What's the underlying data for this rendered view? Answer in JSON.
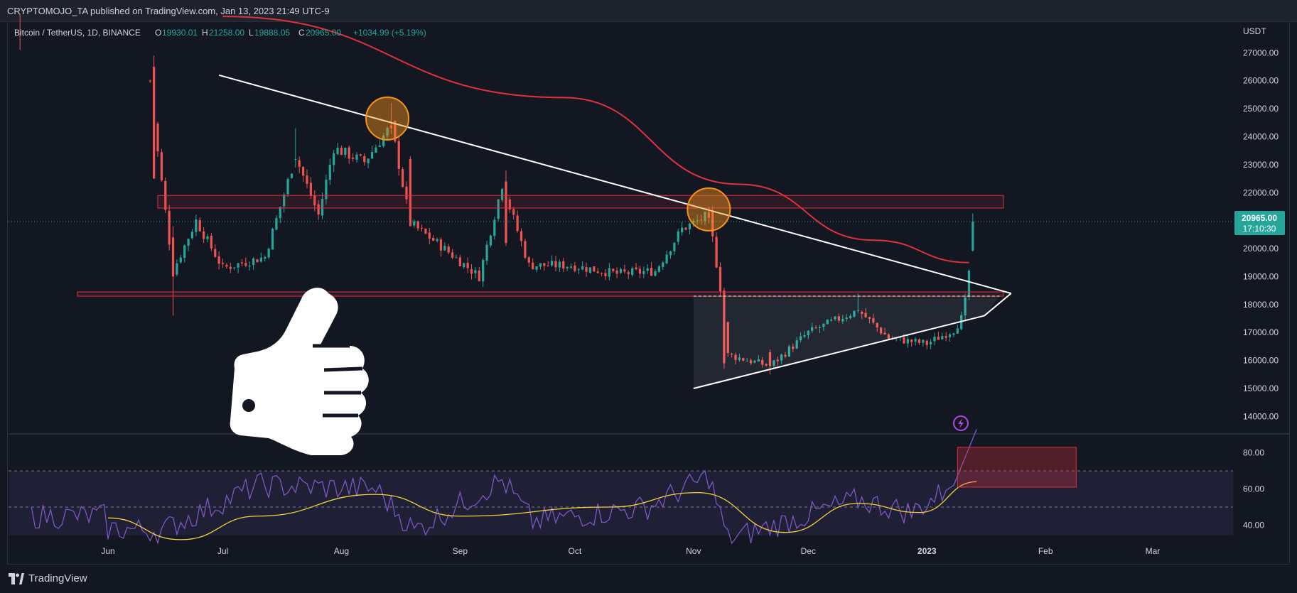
{
  "header": {
    "published": "CRYPTOMOJO_TA published on TradingView.com, Jan 13, 2023 21:49 UTC-9"
  },
  "legend": {
    "symbol": "Bitcoin / TetherUS, 1D, BINANCE",
    "open_label": "O",
    "open": "19930.01",
    "high_label": "H",
    "high": "21258.00",
    "low_label": "L",
    "low": "19888.05",
    "close_label": "C",
    "close": "20965.00",
    "change": "+1034.99 (+5.19%)"
  },
  "price_axis": {
    "currency": "USDT",
    "ticks": [
      "27000.00",
      "26000.00",
      "25000.00",
      "24000.00",
      "23000.00",
      "22000.00",
      "21000.00",
      "20000.00",
      "19000.00",
      "18000.00",
      "17000.00",
      "16000.00",
      "15000.00",
      "14000.00"
    ]
  },
  "last_price": {
    "value": "20965.00",
    "countdown": "17:10:30"
  },
  "rsi_axis": {
    "ticks": [
      "80.00",
      "60.00",
      "40.00"
    ]
  },
  "time_axis": {
    "ticks": [
      "Jun",
      "Jul",
      "Aug",
      "Sep",
      "Oct",
      "Nov",
      "Dec",
      "2023",
      "Feb",
      "Mar"
    ]
  },
  "footer": {
    "brand": "TradingView"
  },
  "colors": {
    "background": "#131722",
    "up": "#26a69a",
    "down": "#ef5350",
    "ma": "#e0323e",
    "rsi": "#7e57c2",
    "rsi_ma": "#f5d33a",
    "zone": "#e0323e",
    "highlight": "#f7931a",
    "trendline": "#ffffff"
  },
  "chart_data": [
    {
      "type": "candlestick",
      "title": "Bitcoin / TetherUS, 1D, BINANCE",
      "y_unit": "USDT",
      "ylim": [
        13400,
        28100
      ],
      "x_range": [
        "2022-05-06",
        "2023-03-22"
      ],
      "grid": false,
      "ohlc_samples": [
        {
          "date": "2022-06-13",
          "open": 26500,
          "high": 26900,
          "low": 22600,
          "close": 22500
        },
        {
          "date": "2022-06-18",
          "open": 20400,
          "high": 20800,
          "low": 17600,
          "close": 19000
        },
        {
          "date": "2022-07-20",
          "open": 23200,
          "high": 24300,
          "low": 22900,
          "close": 23200
        },
        {
          "date": "2022-08-14",
          "open": 24400,
          "high": 25200,
          "low": 24100,
          "close": 24300
        },
        {
          "date": "2022-08-19",
          "open": 23200,
          "high": 23300,
          "low": 20800,
          "close": 20800
        },
        {
          "date": "2022-09-13",
          "open": 22400,
          "high": 22800,
          "low": 20100,
          "close": 20200
        },
        {
          "date": "2022-11-05",
          "open": 21300,
          "high": 21500,
          "low": 20900,
          "close": 21100
        },
        {
          "date": "2022-11-09",
          "open": 18500,
          "high": 18600,
          "low": 15700,
          "close": 15900
        },
        {
          "date": "2022-11-21",
          "open": 16300,
          "high": 16400,
          "low": 15500,
          "close": 15800
        },
        {
          "date": "2022-12-14",
          "open": 17800,
          "high": 18400,
          "low": 17700,
          "close": 17800
        },
        {
          "date": "2023-01-13",
          "open": 19930.01,
          "high": 21258.0,
          "low": 19888.05,
          "close": 20965.0
        }
      ],
      "moving_average": [
        {
          "date": "2022-07-01",
          "value": 28300
        },
        {
          "date": "2022-09-28",
          "value": 25400
        },
        {
          "date": "2022-11-13",
          "value": 22300
        },
        {
          "date": "2022-12-18",
          "value": 20300
        },
        {
          "date": "2023-01-12",
          "value": 19500
        }
      ],
      "trendlines": [
        {
          "from": {
            "date": "2022-06-30",
            "value": 26200
          },
          "to": {
            "date": "2023-01-23",
            "value": 18400
          }
        },
        {
          "from": {
            "date": "2022-11-01",
            "value": 15000
          },
          "to": {
            "date": "2023-01-16",
            "value": 17600
          }
        },
        {
          "from": {
            "date": "2023-01-23",
            "value": 18400
          },
          "to": {
            "date": "2023-01-16",
            "value": 17600
          }
        }
      ],
      "resistance_zone": {
        "from": "2022-06-14",
        "to": "2023-01-21",
        "low": 21450,
        "high": 21900
      },
      "support_zone": {
        "from": "2022-05-24",
        "to": "2023-01-21",
        "low": 18300,
        "high": 18450
      },
      "highlight_circles": [
        {
          "date": "2022-08-13",
          "value": 24650
        },
        {
          "date": "2022-11-05",
          "value": 21400
        }
      ],
      "last_price_line": 20965.0
    },
    {
      "type": "line",
      "title": "RSI",
      "ylim": [
        30,
        90
      ],
      "bands": [
        50,
        70
      ],
      "series": [
        {
          "values": [
            {
              "date": "2022-06-01",
              "value": 38
            },
            {
              "date": "2022-06-15",
              "value": 37
            },
            {
              "date": "2022-07-10",
              "value": 62
            },
            {
              "date": "2022-08-10",
              "value": 60
            },
            {
              "date": "2022-08-20",
              "value": 37
            },
            {
              "date": "2022-09-12",
              "value": 65
            },
            {
              "date": "2022-09-20",
              "value": 42
            },
            {
              "date": "2022-10-20",
              "value": 50
            },
            {
              "date": "2022-11-05",
              "value": 67
            },
            {
              "date": "2022-11-10",
              "value": 32
            },
            {
              "date": "2022-12-14",
              "value": 54
            },
            {
              "date": "2022-12-28",
              "value": 47
            },
            {
              "date": "2023-01-08",
              "value": 62
            },
            {
              "date": "2023-01-14",
              "value": 93
            }
          ]
        },
        {
          "values": [
            {
              "date": "2022-06-01",
              "value": 44
            },
            {
              "date": "2022-06-20",
              "value": 32
            },
            {
              "date": "2022-07-10",
              "value": 45
            },
            {
              "date": "2022-08-10",
              "value": 57
            },
            {
              "date": "2022-09-01",
              "value": 45
            },
            {
              "date": "2022-10-10",
              "value": 50
            },
            {
              "date": "2022-11-02",
              "value": 58
            },
            {
              "date": "2022-11-25",
              "value": 36
            },
            {
              "date": "2022-12-14",
              "value": 52
            },
            {
              "date": "2022-12-30",
              "value": 47
            },
            {
              "date": "2023-01-14",
              "value": 64
            }
          ]
        }
      ],
      "overbought_box": {
        "from": "2023-01-09",
        "to": "2023-02-09",
        "low": 61,
        "high": 83
      }
    }
  ]
}
